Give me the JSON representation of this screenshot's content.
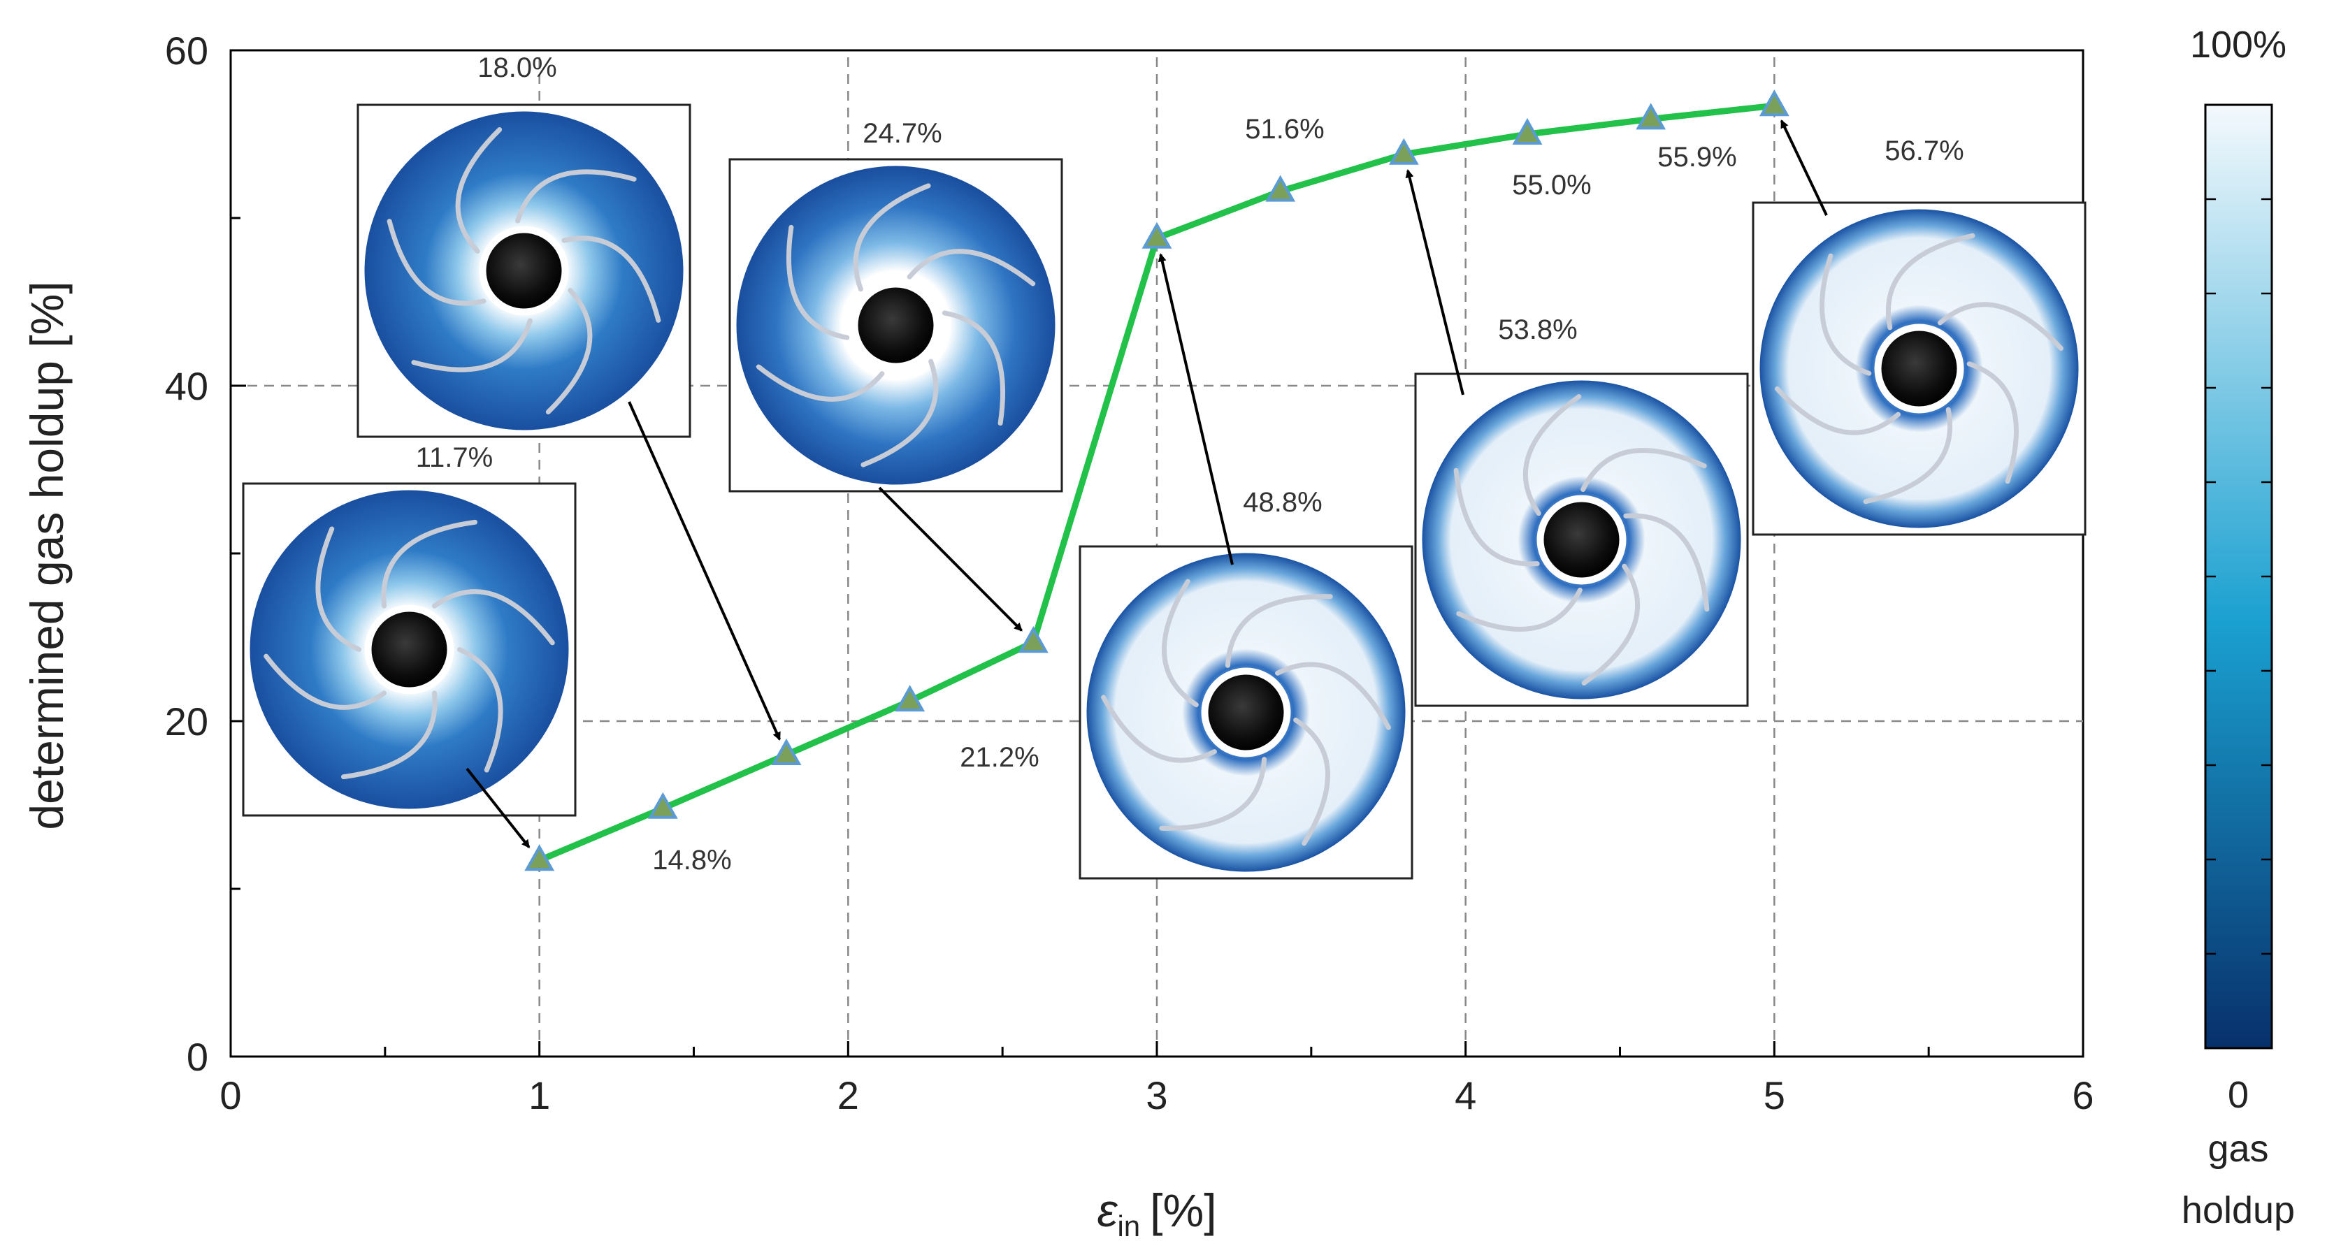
{
  "chart_data": {
    "type": "line",
    "title": "",
    "xlabel_symbol": "ε",
    "xlabel_sub": "in",
    "xlabel_unit": "[%]",
    "ylabel": "determined gas holdup [%]",
    "xlim": [
      0,
      6
    ],
    "ylim": [
      0,
      60
    ],
    "xticks": [
      0,
      1,
      2,
      3,
      4,
      5,
      6
    ],
    "yticks": [
      0,
      20,
      40,
      60
    ],
    "grid": true,
    "series": [
      {
        "name": "determined gas holdup",
        "color": "#22c24a",
        "marker_color": "#7aa05a",
        "x": [
          1.0,
          1.4,
          1.8,
          2.2,
          2.6,
          3.0,
          3.4,
          3.8,
          4.2,
          4.6,
          5.0
        ],
        "y": [
          11.7,
          14.8,
          18.0,
          21.2,
          24.7,
          48.8,
          51.6,
          53.8,
          55.0,
          55.9,
          56.7
        ]
      }
    ],
    "value_labels": [
      "11.7%",
      "14.8%",
      "18.0%",
      "21.2%",
      "24.7%",
      "48.8%",
      "51.6%",
      "53.8%",
      "55.0%",
      "55.9%",
      "56.7%"
    ],
    "colorbar": {
      "max_label": "100%",
      "min_label": "0",
      "caption_line1": "gas",
      "caption_line2": "holdup",
      "color_top": "#f4f9fd",
      "color_mid": "#1aa0d0",
      "color_bottom": "#08306b"
    },
    "inset_images": [
      {
        "name": "inset-11-7",
        "level": 11.7
      },
      {
        "name": "inset-18-0",
        "level": 18.0
      },
      {
        "name": "inset-24-7",
        "level": 24.7
      },
      {
        "name": "inset-48-8",
        "level": 48.8
      },
      {
        "name": "inset-53-8",
        "level": 53.8
      },
      {
        "name": "inset-56-7",
        "level": 56.7
      }
    ]
  }
}
